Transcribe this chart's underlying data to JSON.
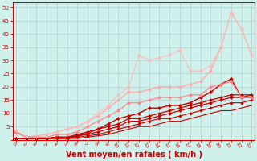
{
  "bg_color": "#cff0eb",
  "grid_color": "#aacccc",
  "xlabel": "Vent moyen/en rafales ( km/h )",
  "xlabel_color": "#cc0000",
  "xlabel_fontsize": 7,
  "tick_color": "#cc0000",
  "ytick_values": [
    0,
    5,
    10,
    15,
    20,
    25,
    30,
    35,
    40,
    45,
    50
  ],
  "xtick_values": [
    0,
    1,
    2,
    3,
    4,
    5,
    6,
    7,
    8,
    9,
    10,
    11,
    12,
    13,
    14,
    15,
    16,
    17,
    18,
    19,
    20,
    21,
    22,
    23
  ],
  "ylim": [
    0,
    52
  ],
  "xlim": [
    -0.3,
    23.3
  ],
  "lines": [
    {
      "x": [
        0,
        1,
        2,
        3,
        4,
        5,
        6,
        7,
        8,
        9,
        10,
        11,
        12,
        13,
        14,
        15,
        16,
        17,
        18,
        19,
        20,
        21,
        22,
        23
      ],
      "y": [
        0.5,
        0.5,
        0.5,
        0.5,
        0.5,
        0.5,
        0.5,
        1,
        1.5,
        2,
        3,
        4,
        5,
        5,
        6,
        7,
        7,
        8,
        9,
        10,
        11,
        11,
        12,
        13
      ],
      "color": "#cc0000",
      "lw": 0.8,
      "marker": null,
      "markersize": 0,
      "alpha": 1.0
    },
    {
      "x": [
        0,
        1,
        2,
        3,
        4,
        5,
        6,
        7,
        8,
        9,
        10,
        11,
        12,
        13,
        14,
        15,
        16,
        17,
        18,
        19,
        20,
        21,
        22,
        23
      ],
      "y": [
        0.5,
        0.5,
        0.5,
        0.5,
        0.5,
        0.5,
        1,
        1.5,
        2,
        3,
        4,
        5,
        6,
        7,
        8,
        8,
        9,
        10,
        11,
        12,
        13,
        14,
        14,
        15
      ],
      "color": "#cc0000",
      "lw": 0.8,
      "marker": "D",
      "markersize": 1.8,
      "alpha": 1.0
    },
    {
      "x": [
        0,
        1,
        2,
        3,
        4,
        5,
        6,
        7,
        8,
        9,
        10,
        11,
        12,
        13,
        14,
        15,
        16,
        17,
        18,
        19,
        20,
        21,
        22,
        23
      ],
      "y": [
        0.5,
        0.5,
        0.5,
        0.5,
        1,
        1,
        1.5,
        2,
        3,
        4,
        5,
        7,
        7,
        8,
        9,
        10,
        11,
        12,
        13,
        14,
        15,
        16,
        16,
        17
      ],
      "color": "#cc0000",
      "lw": 0.9,
      "marker": "D",
      "markersize": 2.0,
      "alpha": 1.0
    },
    {
      "x": [
        0,
        1,
        2,
        3,
        4,
        5,
        6,
        7,
        8,
        9,
        10,
        11,
        12,
        13,
        14,
        15,
        16,
        17,
        18,
        19,
        20,
        21,
        22,
        23
      ],
      "y": [
        0.5,
        0.5,
        0.5,
        0.5,
        1,
        1,
        2,
        3,
        4,
        5,
        6,
        8,
        8,
        9,
        10,
        11,
        12,
        13,
        14,
        15,
        16,
        17,
        17,
        17
      ],
      "color": "#cc0000",
      "lw": 0.9,
      "marker": "D",
      "markersize": 2.0,
      "alpha": 1.0
    },
    {
      "x": [
        0,
        1,
        2,
        3,
        4,
        5,
        6,
        7,
        8,
        9,
        10,
        11,
        12,
        13,
        14,
        15,
        16,
        17,
        18,
        19,
        20,
        21,
        22,
        23
      ],
      "y": [
        3,
        1,
        1,
        0.5,
        1,
        0.5,
        1.5,
        2.5,
        4,
        6,
        8,
        9,
        10,
        12,
        12,
        13,
        13,
        14,
        16,
        18,
        21,
        23,
        16,
        16
      ],
      "color": "#cc0000",
      "lw": 1.0,
      "marker": "D",
      "markersize": 2.2,
      "alpha": 1.0
    },
    {
      "x": [
        0,
        1,
        2,
        3,
        4,
        5,
        6,
        7,
        8,
        9,
        10,
        11,
        12,
        13,
        14,
        15,
        16,
        17,
        18,
        19,
        20,
        21,
        22,
        23
      ],
      "y": [
        3,
        1,
        1,
        1,
        2,
        2,
        3,
        5,
        7,
        9,
        11,
        14,
        14,
        15,
        16,
        16,
        16,
        17,
        17,
        20,
        21,
        22,
        16,
        16
      ],
      "color": "#ff8888",
      "lw": 1.0,
      "marker": "D",
      "markersize": 2.2,
      "alpha": 0.9
    },
    {
      "x": [
        0,
        1,
        2,
        3,
        4,
        5,
        6,
        7,
        8,
        9,
        10,
        11,
        12,
        13,
        14,
        15,
        16,
        17,
        18,
        19,
        20,
        21,
        22,
        23
      ],
      "y": [
        3.5,
        1,
        1.5,
        2,
        3,
        4,
        5,
        7,
        9,
        12,
        15,
        18,
        18,
        19,
        20,
        20,
        20,
        21,
        22,
        26,
        35,
        48,
        42,
        32
      ],
      "color": "#ffaaaa",
      "lw": 1.0,
      "marker": "D",
      "markersize": 2.2,
      "alpha": 0.9
    },
    {
      "x": [
        3,
        4,
        5,
        6,
        7,
        8,
        9,
        10,
        11,
        12,
        13,
        14,
        15,
        16,
        17,
        18,
        19,
        20,
        21,
        22,
        23
      ],
      "y": [
        2,
        3,
        4,
        5,
        7,
        10,
        13,
        17,
        20,
        32,
        30,
        31,
        32,
        34,
        26,
        26,
        28,
        35,
        48,
        42,
        32
      ],
      "color": "#ffbbbb",
      "lw": 0.9,
      "marker": "D",
      "markersize": 2.2,
      "alpha": 0.85
    }
  ]
}
